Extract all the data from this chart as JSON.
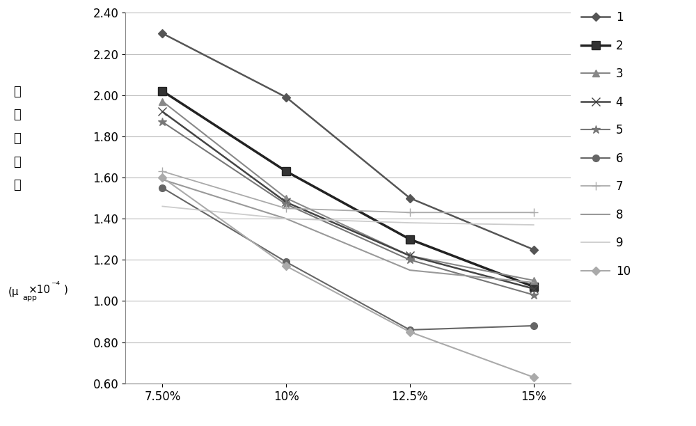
{
  "x_labels": [
    "7.50%",
    "10%",
    "12.5%",
    "15%"
  ],
  "x_positions": [
    0,
    1,
    2,
    3
  ],
  "series": [
    {
      "label": "1",
      "values": [
        2.3,
        1.99,
        1.5,
        1.25
      ],
      "color": "#555555",
      "marker": "D",
      "markersize": 6,
      "linewidth": 1.8,
      "markerfacecolor": "#555555"
    },
    {
      "label": "2",
      "values": [
        2.02,
        1.63,
        1.3,
        1.07
      ],
      "color": "#222222",
      "marker": "s",
      "markersize": 8,
      "linewidth": 2.5,
      "markerfacecolor": "#333333"
    },
    {
      "label": "3",
      "values": [
        1.97,
        1.5,
        1.22,
        1.1
      ],
      "color": "#888888",
      "marker": "^",
      "markersize": 7,
      "linewidth": 1.5,
      "markerfacecolor": "#888888"
    },
    {
      "label": "4",
      "values": [
        1.92,
        1.48,
        1.22,
        1.06
      ],
      "color": "#444444",
      "marker": "x",
      "markersize": 8,
      "linewidth": 1.8,
      "markerfacecolor": "#444444"
    },
    {
      "label": "5",
      "values": [
        1.87,
        1.47,
        1.2,
        1.03
      ],
      "color": "#777777",
      "marker": "*",
      "markersize": 9,
      "linewidth": 1.5,
      "markerfacecolor": "#777777"
    },
    {
      "label": "6",
      "values": [
        1.55,
        1.19,
        0.86,
        0.88
      ],
      "color": "#666666",
      "marker": "o",
      "markersize": 7,
      "linewidth": 1.5,
      "markerfacecolor": "#666666"
    },
    {
      "label": "7",
      "values": [
        1.63,
        1.45,
        1.43,
        1.43
      ],
      "color": "#aaaaaa",
      "marker": "+",
      "markersize": 9,
      "linewidth": 1.3,
      "markerfacecolor": "#aaaaaa"
    },
    {
      "label": "8",
      "values": [
        1.59,
        1.4,
        1.15,
        1.09
      ],
      "color": "#999999",
      "marker": "None",
      "markersize": 0,
      "linewidth": 1.5,
      "markerfacecolor": "#999999"
    },
    {
      "label": "9",
      "values": [
        1.46,
        1.4,
        1.38,
        1.37
      ],
      "color": "#cccccc",
      "marker": "None",
      "markersize": 0,
      "linewidth": 1.3,
      "markerfacecolor": "#cccccc"
    },
    {
      "label": "10",
      "values": [
        1.6,
        1.17,
        0.85,
        0.63
      ],
      "color": "#aaaaaa",
      "marker": "D",
      "markersize": 6,
      "linewidth": 1.5,
      "markerfacecolor": "#aaaaaa"
    }
  ],
  "ylim": [
    0.6,
    2.4
  ],
  "yticks": [
    0.6,
    0.8,
    1.0,
    1.2,
    1.4,
    1.6,
    1.8,
    2.0,
    2.2,
    2.4
  ],
  "grid_color": "#bbbbbb",
  "background_color": "#ffffff",
  "legend_fontsize": 12,
  "axis_fontsize": 12,
  "chinese_label_top": "表\n观\n迁\n移\n率",
  "chinese_label_bottom": "(μ",
  "figure_width": 10.0,
  "figure_height": 6.12
}
